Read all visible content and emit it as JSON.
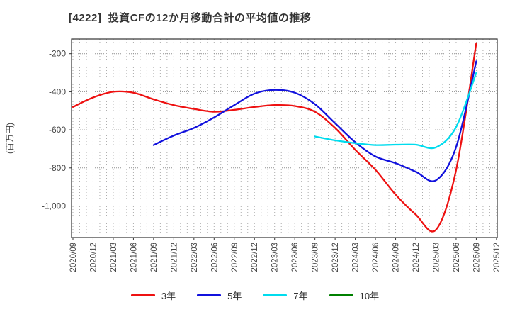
{
  "title": "[4222]  投資CFの12か月移動合計の平均値の推移",
  "chart_data": {
    "type": "line",
    "title": "[4222]  投資CFの12か月移動合計の平均値の推移",
    "ylabel": "(百万円)",
    "xlabel": "",
    "grid": "dotted; vertical gridline every month, horizontal at each y tick",
    "legend_position": "bottom",
    "ylim": [
      -1166,
      -123
    ],
    "x_start": "2020/09",
    "x_end": "2025/12",
    "y_ticks": [
      {
        "v": -200,
        "label": "-200"
      },
      {
        "v": -400,
        "label": "-400"
      },
      {
        "v": -600,
        "label": "-600"
      },
      {
        "v": -800,
        "label": "-800"
      },
      {
        "v": -1000,
        "label": "-1,000"
      }
    ],
    "x_tick_labels": [
      "2020/09",
      "2020/12",
      "2021/03",
      "2021/06",
      "2021/09",
      "2021/12",
      "2022/03",
      "2022/06",
      "2022/09",
      "2022/12",
      "2023/03",
      "2023/06",
      "2023/09",
      "2023/12",
      "2024/03",
      "2024/06",
      "2024/09",
      "2024/12",
      "2025/03",
      "2025/06",
      "2025/09",
      "2025/12"
    ],
    "x_tick_month_index": [
      0,
      3,
      6,
      9,
      12,
      15,
      18,
      21,
      24,
      27,
      30,
      33,
      36,
      39,
      42,
      45,
      48,
      51,
      54,
      57,
      60,
      63
    ],
    "series": [
      {
        "name": "3年",
        "color": "#ee1111",
        "start_x": "2020/09",
        "start_month_index": 0,
        "step_months": 3,
        "values": [
          -480,
          -430,
          -400,
          -405,
          -440,
          -470,
          -490,
          -505,
          -495,
          -480,
          -470,
          -475,
          -505,
          -590,
          -705,
          -810,
          -940,
          -1045,
          -1125,
          -810,
          -145
        ]
      },
      {
        "name": "5年",
        "color": "#1111dd",
        "start_x": "2021/09",
        "start_month_index": 12,
        "step_months": 3,
        "values": [
          -680,
          -630,
          -590,
          -535,
          -470,
          -410,
          -390,
          -405,
          -465,
          -565,
          -665,
          -740,
          -775,
          -820,
          -865,
          -690,
          -240
        ]
      },
      {
        "name": "7年",
        "color": "#00dcee",
        "start_x": "2023/09",
        "start_month_index": 36,
        "step_months": 3,
        "values": [
          -635,
          -655,
          -670,
          -680,
          -678,
          -678,
          -692,
          -585,
          -300
        ]
      },
      {
        "name": "10年",
        "color": "#008000",
        "start_x": null,
        "start_month_index": null,
        "step_months": 3,
        "values": []
      }
    ]
  }
}
